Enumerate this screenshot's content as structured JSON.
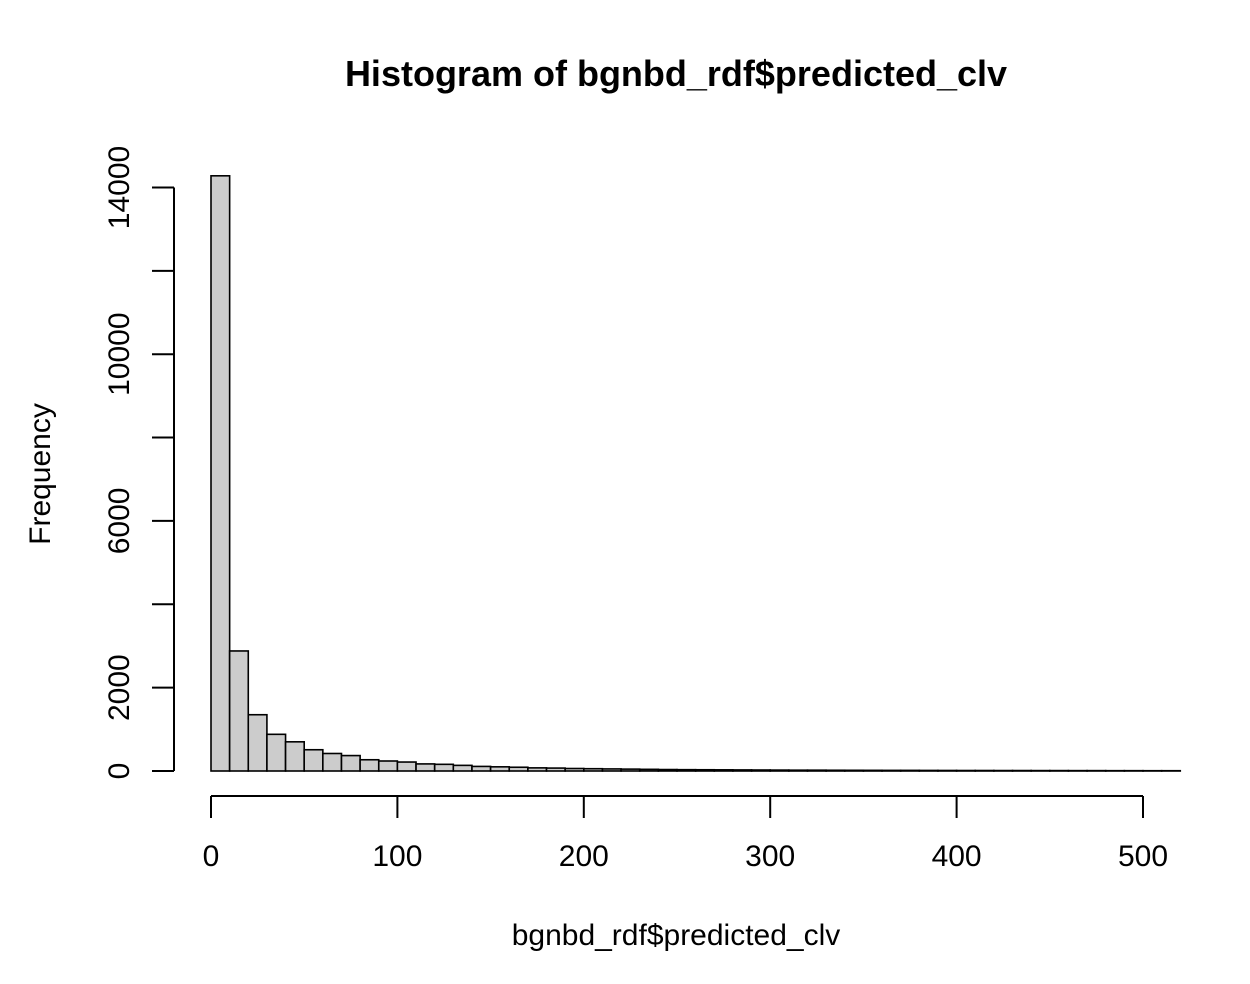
{
  "chart_data": {
    "type": "bar",
    "title": "Histogram of bgnbd_rdf$predicted_clv",
    "xlabel": "bgnbd_rdf$predicted_clv",
    "ylabel": "Frequency",
    "bin_width": 10,
    "bin_start": 0,
    "xlim": [
      0,
      520
    ],
    "ylim": [
      0,
      14000
    ],
    "x_ticks": [
      0,
      100,
      200,
      300,
      400,
      500
    ],
    "y_ticks": [
      0,
      2000,
      4000,
      6000,
      8000,
      10000,
      12000,
      14000
    ],
    "y_tick_labels_shown": [
      "0",
      "2000",
      "6000",
      "10000",
      "14000"
    ],
    "values": [
      14280,
      2880,
      1350,
      880,
      700,
      510,
      420,
      370,
      270,
      240,
      215,
      170,
      160,
      135,
      110,
      100,
      90,
      75,
      70,
      60,
      55,
      50,
      45,
      40,
      35,
      32,
      30,
      28,
      26,
      24,
      22,
      20,
      20,
      18,
      17,
      16,
      15,
      15,
      14,
      13,
      12,
      12,
      11,
      11,
      10,
      10,
      9,
      9,
      8,
      8,
      7,
      7
    ],
    "grid": false,
    "legend": "none",
    "colors": {
      "bar_fill": "#cccccc",
      "bar_stroke": "#000000"
    }
  }
}
